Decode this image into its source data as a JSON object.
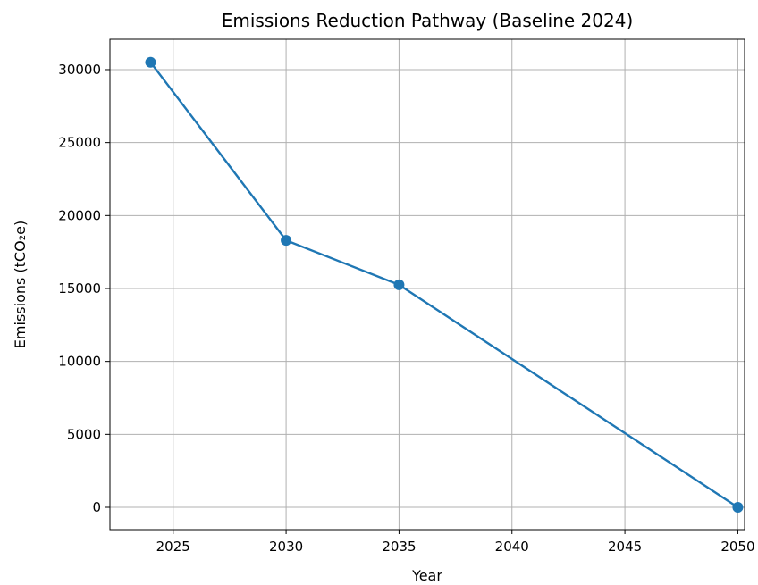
{
  "chart_data": {
    "type": "line",
    "title": "Emissions Reduction Pathway (Baseline 2024)",
    "xlabel": "Year",
    "ylabel": "Emissions (tCO₂e)",
    "xlim": [
      2022.2,
      2050.3
    ],
    "ylim": [
      -1530,
      32080
    ],
    "xticks": [
      2025,
      2030,
      2035,
      2040,
      2045,
      2050
    ],
    "yticks": [
      0,
      5000,
      10000,
      15000,
      20000,
      25000,
      30000
    ],
    "grid": true,
    "series": [
      {
        "color": "#1f77b4",
        "marker": "circle",
        "points": [
          {
            "x": 2024,
            "y": 30500
          },
          {
            "x": 2030,
            "y": 18300
          },
          {
            "x": 2035,
            "y": 15250
          },
          {
            "x": 2050,
            "y": 0
          }
        ]
      }
    ]
  }
}
